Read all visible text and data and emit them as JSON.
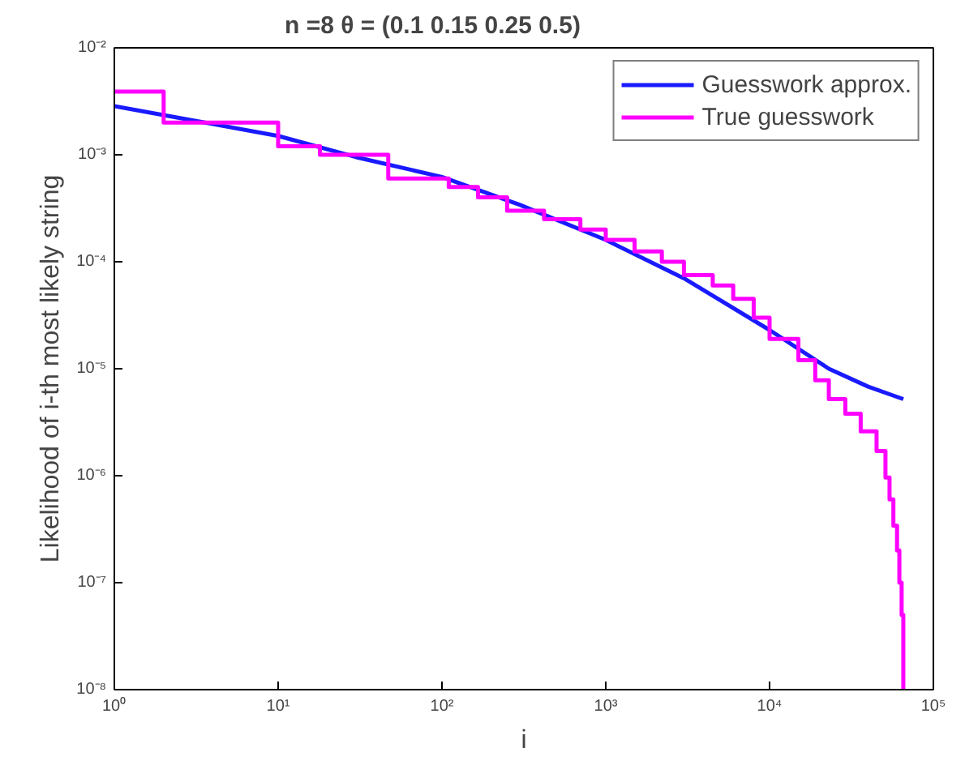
{
  "chart_data": {
    "type": "line",
    "title": "n =8    θ = (0.1         0.15         0.25         0.5)",
    "xlabel": "i",
    "ylabel": "Likelihood of i-th most likely string",
    "log": "xy",
    "xlim": [
      1,
      100000
    ],
    "ylim": [
      1e-08,
      0.01
    ],
    "xticks": [
      {
        "value": 1,
        "label": "10⁰"
      },
      {
        "value": 10,
        "label": "10¹"
      },
      {
        "value": 100,
        "label": "10²"
      },
      {
        "value": 1000,
        "label": "10³"
      },
      {
        "value": 10000,
        "label": "10⁴"
      },
      {
        "value": 100000,
        "label": "10⁵"
      }
    ],
    "yticks": [
      {
        "value": 1e-08,
        "label": "10⁻⁸"
      },
      {
        "value": 1e-07,
        "label": "10⁻⁷"
      },
      {
        "value": 1e-06,
        "label": "10⁻⁶"
      },
      {
        "value": 1e-05,
        "label": "10⁻⁵"
      },
      {
        "value": 0.0001,
        "label": "10⁻⁴"
      },
      {
        "value": 0.001,
        "label": "10⁻³"
      },
      {
        "value": 0.01,
        "label": "10⁻²"
      }
    ],
    "grid": false,
    "legend": "top right",
    "line_style": "solid",
    "marker": "none",
    "series": [
      {
        "name": "Guesswork approx.",
        "color": "#1a1aff",
        "x": [
          1,
          3,
          10,
          30,
          100,
          300,
          1000,
          3000,
          10000,
          23000,
          40000,
          65536
        ],
        "values": [
          0.00285,
          0.0021,
          0.0015,
          0.00095,
          0.00062,
          0.00034,
          0.00016,
          7e-05,
          2.3e-05,
          1e-05,
          6.8e-06,
          5.2e-06
        ]
      },
      {
        "name": "True guesswork",
        "color": "#ff00ff",
        "type": "step",
        "x": [
          1,
          2,
          10,
          18,
          47,
          110,
          166,
          250,
          420,
          700,
          1000,
          1500,
          2200,
          3000,
          4500,
          6000,
          8000,
          10000,
          15000,
          19000,
          23000,
          29000,
          36000,
          45000,
          51000,
          54000,
          57000,
          60000,
          62000,
          64000,
          65536
        ],
        "values": [
          0.0039,
          0.002,
          0.0012,
          0.001,
          0.0006,
          0.0005,
          0.0004,
          0.0003,
          0.00025,
          0.0002,
          0.00016,
          0.000125,
          0.0001,
          7.5e-05,
          6e-05,
          4.5e-05,
          3e-05,
          1.9e-05,
          1.2e-05,
          7.8e-06,
          5.2e-06,
          3.8e-06,
          2.6e-06,
          1.7e-06,
          9.6e-07,
          6e-07,
          3.4e-07,
          2e-07,
          1e-07,
          5e-08,
          1e-08
        ]
      }
    ]
  }
}
